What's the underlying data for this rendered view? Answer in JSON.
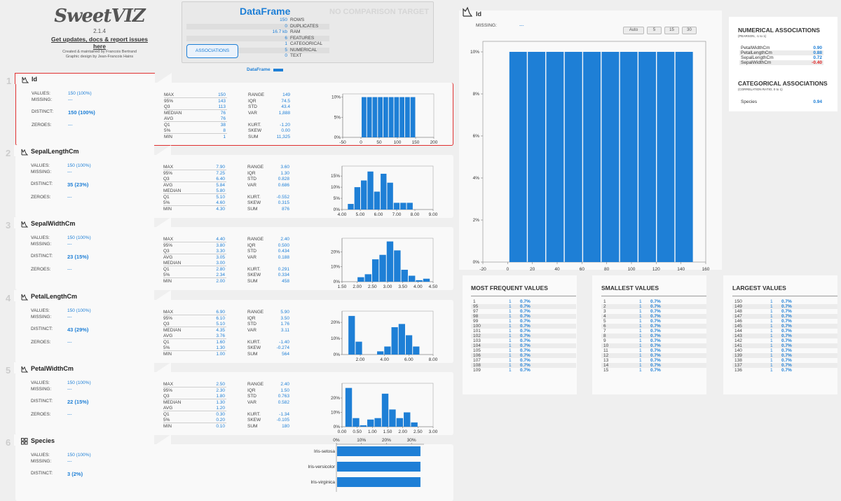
{
  "logo": {
    "name": "SweetVIZ",
    "version": "2.1.4",
    "updates_link": "Get updates, docs & report issues here",
    "credit1": "Created & maintained by Francois Bertrand",
    "credit2": "Graphic design by Jean-Francois Hains"
  },
  "dataframe": {
    "title": "DataFrame",
    "no_comparison": "NO COMPARISON TARGET",
    "rows": [
      {
        "num": "150",
        "label": "ROWS"
      },
      {
        "num": "0",
        "label": "DUPLICATES"
      },
      {
        "num": "16.7 kb",
        "label": "RAM"
      },
      {
        "num": "6",
        "label": "FEATURES"
      },
      {
        "num": "1",
        "label": "CATEGORICAL"
      },
      {
        "num": "5",
        "label": "NUMERICAL"
      },
      {
        "num": "0",
        "label": "TEXT"
      }
    ],
    "assoc_button": "ASSOCIATIONS",
    "legend": "DataFrame",
    "accent": "#1e7fd6"
  },
  "features": [
    {
      "index": "1",
      "name": "Id",
      "icon": "histogram-icon",
      "left": [
        [
          "VALUES:",
          "150 (100%)"
        ],
        [
          "MISSING:",
          "---"
        ],
        [
          "DISTINCT:",
          "150 (100%)"
        ],
        [
          "ZEROES:",
          "---"
        ]
      ],
      "mid": [
        [
          "MAX",
          "150"
        ],
        [
          "95%",
          "143"
        ],
        [
          "Q3",
          "113"
        ],
        [
          "MEDIAN",
          "76"
        ],
        [
          "AVG",
          "76"
        ],
        [
          "Q1",
          "38"
        ],
        [
          "5%",
          "8"
        ],
        [
          "MIN",
          "1"
        ]
      ],
      "right": [
        [
          "RANGE",
          "149"
        ],
        [
          "IQR",
          "74.5"
        ],
        [
          "STD",
          "43.4"
        ],
        [
          "VAR",
          "1,888"
        ],
        [
          "",
          ""
        ],
        [
          "KURT.",
          "-1.20"
        ],
        [
          "SKEW",
          "0.00"
        ],
        [
          "SUM",
          "11,325"
        ]
      ],
      "yticks": [
        "10%",
        "5%",
        "0%"
      ],
      "xticks": [
        "-50",
        "0",
        "50",
        "100",
        "150",
        "200"
      ]
    },
    {
      "index": "2",
      "name": "SepalLengthCm",
      "icon": "histogram-icon",
      "left": [
        [
          "VALUES:",
          "150 (100%)"
        ],
        [
          "MISSING:",
          "---"
        ],
        [
          "DISTINCT:",
          "35 (23%)"
        ],
        [
          "ZEROES:",
          "---"
        ]
      ],
      "mid": [
        [
          "MAX",
          "7.90"
        ],
        [
          "95%",
          "7.25"
        ],
        [
          "Q3",
          "6.40"
        ],
        [
          "AVG",
          "5.84"
        ],
        [
          "MEDIAN",
          "5.80"
        ],
        [
          "Q1",
          "5.10"
        ],
        [
          "5%",
          "4.60"
        ],
        [
          "MIN",
          "4.30"
        ]
      ],
      "right": [
        [
          "RANGE",
          "3.60"
        ],
        [
          "IQR",
          "1.30"
        ],
        [
          "STD",
          "0.828"
        ],
        [
          "VAR",
          "0.686"
        ],
        [
          "",
          ""
        ],
        [
          "KURT.",
          "-0.552"
        ],
        [
          "SKEW",
          "0.315"
        ],
        [
          "SUM",
          "876"
        ]
      ],
      "yticks": [
        "15%",
        "10%",
        "5%",
        "0%"
      ],
      "xticks": [
        "4.00",
        "5.00",
        "6.00",
        "7.00",
        "8.00",
        "9.00"
      ]
    },
    {
      "index": "3",
      "name": "SepalWidthCm",
      "icon": "histogram-icon",
      "left": [
        [
          "VALUES:",
          "150 (100%)"
        ],
        [
          "MISSING:",
          "---"
        ],
        [
          "DISTINCT:",
          "23 (15%)"
        ],
        [
          "ZEROES:",
          "---"
        ]
      ],
      "mid": [
        [
          "MAX",
          "4.40"
        ],
        [
          "95%",
          "3.80"
        ],
        [
          "Q3",
          "3.30"
        ],
        [
          "AVG",
          "3.05"
        ],
        [
          "MEDIAN",
          "3.00"
        ],
        [
          "Q1",
          "2.80"
        ],
        [
          "5%",
          "2.34"
        ],
        [
          "MIN",
          "2.00"
        ]
      ],
      "right": [
        [
          "RANGE",
          "2.40"
        ],
        [
          "IQR",
          "0.500"
        ],
        [
          "STD",
          "0.434"
        ],
        [
          "VAR",
          "0.188"
        ],
        [
          "",
          ""
        ],
        [
          "KURT.",
          "0.291"
        ],
        [
          "SKEW",
          "0.334"
        ],
        [
          "SUM",
          "458"
        ]
      ],
      "yticks": [
        "20%",
        "10%",
        "0%"
      ],
      "xticks": [
        "1.50",
        "2.00",
        "2.50",
        "3.00",
        "3.50",
        "4.00",
        "4.50"
      ]
    },
    {
      "index": "4",
      "name": "PetalLengthCm",
      "icon": "histogram-icon",
      "left": [
        [
          "VALUES:",
          "150 (100%)"
        ],
        [
          "MISSING:",
          "---"
        ],
        [
          "DISTINCT:",
          "43 (29%)"
        ],
        [
          "ZEROES:",
          "---"
        ]
      ],
      "mid": [
        [
          "MAX",
          "6.90"
        ],
        [
          "95%",
          "6.10"
        ],
        [
          "Q3",
          "5.10"
        ],
        [
          "MEDIAN",
          "4.35"
        ],
        [
          "AVG",
          "3.76"
        ],
        [
          "Q1",
          "1.60"
        ],
        [
          "5%",
          "1.30"
        ],
        [
          "MIN",
          "1.00"
        ]
      ],
      "right": [
        [
          "RANGE",
          "5.90"
        ],
        [
          "IQR",
          "3.50"
        ],
        [
          "STD",
          "1.76"
        ],
        [
          "VAR",
          "3.11"
        ],
        [
          "",
          ""
        ],
        [
          "KURT.",
          "-1.40"
        ],
        [
          "SKEW",
          "-0.274"
        ],
        [
          "SUM",
          "564"
        ]
      ],
      "yticks": [
        "20%",
        "10%",
        "0%"
      ],
      "xticks": [
        "2.00",
        "4.00",
        "6.00",
        "8.00"
      ]
    },
    {
      "index": "5",
      "name": "PetalWidthCm",
      "icon": "histogram-icon",
      "left": [
        [
          "VALUES:",
          "150 (100%)"
        ],
        [
          "MISSING:",
          "---"
        ],
        [
          "DISTINCT:",
          "22 (15%)"
        ],
        [
          "ZEROES:",
          "---"
        ]
      ],
      "mid": [
        [
          "MAX",
          "2.50"
        ],
        [
          "95%",
          "2.30"
        ],
        [
          "Q3",
          "1.80"
        ],
        [
          "MEDIAN",
          "1.30"
        ],
        [
          "AVG",
          "1.20"
        ],
        [
          "Q1",
          "0.30"
        ],
        [
          "5%",
          "0.20"
        ],
        [
          "MIN",
          "0.10"
        ]
      ],
      "right": [
        [
          "RANGE",
          "2.40"
        ],
        [
          "IQR",
          "1.50"
        ],
        [
          "STD",
          "0.763"
        ],
        [
          "VAR",
          "0.582"
        ],
        [
          "",
          ""
        ],
        [
          "KURT.",
          "-1.34"
        ],
        [
          "SKEW",
          "-0.105"
        ],
        [
          "SUM",
          "180"
        ]
      ],
      "yticks": [
        "20%",
        "10%",
        "0%"
      ],
      "xticks": [
        "0.00",
        "0.50",
        "1.00",
        "1.50",
        "2.00",
        "2.50",
        "3.00"
      ]
    },
    {
      "index": "6",
      "name": "Species",
      "icon": "grid-icon",
      "left": [
        [
          "VALUES:",
          "150 (100%)"
        ],
        [
          "MISSING:",
          "---"
        ],
        [
          "DISTINCT:",
          "3 (2%)"
        ]
      ],
      "mid": [],
      "right": [],
      "yticks": [],
      "xticks": [
        "0%",
        "10%",
        "20%",
        "30%"
      ]
    }
  ],
  "chart_data": [
    {
      "type": "bar",
      "title": "Id",
      "values": [
        10,
        10,
        10,
        10,
        10,
        10,
        10,
        10,
        10,
        10
      ],
      "x_range": [
        1,
        150
      ],
      "xlim": [
        -50,
        200
      ],
      "ylim": [
        0,
        10
      ]
    },
    {
      "type": "bar",
      "title": "SepalLengthCm",
      "values": [
        2.5,
        10,
        13,
        17,
        8,
        16,
        12,
        3,
        3,
        3
      ],
      "x_range": [
        4.3,
        7.9
      ],
      "xlim": [
        4.0,
        9.0
      ],
      "ylim": [
        0,
        18
      ]
    },
    {
      "type": "bar",
      "title": "SepalWidthCm",
      "values": [
        3,
        5,
        15,
        18,
        27,
        21,
        8,
        4,
        1,
        2
      ],
      "x_range": [
        2.0,
        4.4
      ],
      "xlim": [
        1.5,
        4.5
      ],
      "ylim": [
        0,
        27
      ]
    },
    {
      "type": "bar",
      "title": "PetalLengthCm",
      "values": [
        24,
        8,
        0,
        0,
        2,
        5,
        17,
        19,
        12,
        5
      ],
      "x_range": [
        1.0,
        6.9
      ],
      "xlim": [
        0.5,
        8.0
      ],
      "ylim": [
        0,
        25
      ]
    },
    {
      "type": "bar",
      "title": "PetalWidthCm",
      "values": [
        27,
        6,
        1,
        5,
        6,
        23,
        12,
        6,
        10,
        3
      ],
      "x_range": [
        0.1,
        2.5
      ],
      "xlim": [
        0,
        3.0
      ],
      "ylim": [
        0,
        28
      ]
    },
    {
      "type": "bar",
      "orientation": "horizontal",
      "title": "Species",
      "categories": [
        "Iris-setosa",
        "Iris-versicolor",
        "Iris-virginica"
      ],
      "values": [
        33.3,
        33.3,
        33.3
      ],
      "xlim": [
        0,
        35
      ]
    },
    {
      "type": "bar",
      "title": "Id",
      "values": [
        10,
        10,
        10,
        10,
        10,
        10,
        10,
        10,
        10,
        10
      ],
      "x_range": [
        1,
        150
      ],
      "xlim": [
        -20,
        160
      ],
      "ylim": [
        0,
        10
      ],
      "yticks": [
        "10%",
        "8%",
        "6%",
        "4%",
        "2%",
        "0%"
      ],
      "xticks": [
        "-20",
        "0",
        "20",
        "40",
        "60",
        "80",
        "100",
        "120",
        "140",
        "160"
      ]
    }
  ],
  "detail": {
    "title": "Id",
    "missing_label": "MISSING:",
    "missing_value": "---",
    "bin_buttons": [
      "Auto",
      "5",
      "15",
      "30"
    ]
  },
  "most_frequent": {
    "title": "MOST FREQUENT VALUES",
    "rows": [
      [
        "1",
        "1",
        "0.7%"
      ],
      [
        "95",
        "1",
        "0.7%"
      ],
      [
        "97",
        "1",
        "0.7%"
      ],
      [
        "98",
        "1",
        "0.7%"
      ],
      [
        "99",
        "1",
        "0.7%"
      ],
      [
        "100",
        "1",
        "0.7%"
      ],
      [
        "101",
        "1",
        "0.7%"
      ],
      [
        "102",
        "1",
        "0.7%"
      ],
      [
        "103",
        "1",
        "0.7%"
      ],
      [
        "104",
        "1",
        "0.7%"
      ],
      [
        "105",
        "1",
        "0.7%"
      ],
      [
        "106",
        "1",
        "0.7%"
      ],
      [
        "107",
        "1",
        "0.7%"
      ],
      [
        "108",
        "1",
        "0.7%"
      ],
      [
        "109",
        "1",
        "0.7%"
      ]
    ]
  },
  "smallest": {
    "title": "SMALLEST VALUES",
    "rows": [
      [
        "1",
        "1",
        "0.7%"
      ],
      [
        "2",
        "1",
        "0.7%"
      ],
      [
        "3",
        "1",
        "0.7%"
      ],
      [
        "4",
        "1",
        "0.7%"
      ],
      [
        "5",
        "1",
        "0.7%"
      ],
      [
        "6",
        "1",
        "0.7%"
      ],
      [
        "7",
        "1",
        "0.7%"
      ],
      [
        "8",
        "1",
        "0.7%"
      ],
      [
        "9",
        "1",
        "0.7%"
      ],
      [
        "10",
        "1",
        "0.7%"
      ],
      [
        "11",
        "1",
        "0.7%"
      ],
      [
        "12",
        "1",
        "0.7%"
      ],
      [
        "13",
        "1",
        "0.7%"
      ],
      [
        "14",
        "1",
        "0.7%"
      ],
      [
        "15",
        "1",
        "0.7%"
      ]
    ]
  },
  "largest": {
    "title": "LARGEST VALUES",
    "rows": [
      [
        "150",
        "1",
        "0.7%"
      ],
      [
        "149",
        "1",
        "0.7%"
      ],
      [
        "148",
        "1",
        "0.7%"
      ],
      [
        "147",
        "1",
        "0.7%"
      ],
      [
        "146",
        "1",
        "0.7%"
      ],
      [
        "145",
        "1",
        "0.7%"
      ],
      [
        "144",
        "1",
        "0.7%"
      ],
      [
        "143",
        "1",
        "0.7%"
      ],
      [
        "142",
        "1",
        "0.7%"
      ],
      [
        "141",
        "1",
        "0.7%"
      ],
      [
        "140",
        "1",
        "0.7%"
      ],
      [
        "139",
        "1",
        "0.7%"
      ],
      [
        "138",
        "1",
        "0.7%"
      ],
      [
        "137",
        "1",
        "0.7%"
      ],
      [
        "136",
        "1",
        "0.7%"
      ]
    ]
  },
  "associations": {
    "num_title": "NUMERICAL ASSOCIATIONS",
    "num_sub": "(PEARSON, -1 to 1)",
    "num_rows": [
      [
        "PetalWidthCm",
        "0.90"
      ],
      [
        "PetalLengthCm",
        "0.88"
      ],
      [
        "SepalLengthCm",
        "0.72"
      ],
      [
        "SepalWidthCm",
        "-0.40"
      ]
    ],
    "cat_title": "CATEGORICAL ASSOCIATIONS",
    "cat_sub": "(CORRELATION RATIO, 0 to 1)",
    "cat_rows": [
      [
        "Species",
        "0.94"
      ]
    ],
    "negative_color": "#e02020"
  }
}
